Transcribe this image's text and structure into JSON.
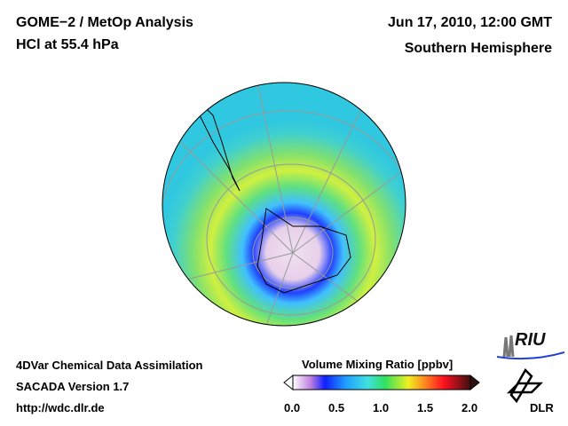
{
  "header": {
    "title": "GOME−2 / MetOp Analysis",
    "subtitle": "HCl at 55.4 hPa",
    "date": "Jun 17, 2010, 12:00 GMT",
    "region": "Southern Hemisphere"
  },
  "footer": {
    "line1": "4DVar Chemical Data Assimilation",
    "line2": "SACADA Version 1.7",
    "line3": "http://wdc.dlr.de"
  },
  "colorbar": {
    "title": "Volume Mixing Ratio [ppbv]",
    "ticks": [
      "0.0",
      "0.5",
      "1.0",
      "1.5",
      "2.0"
    ],
    "range": [
      0,
      2
    ]
  },
  "logos": {
    "riu": "RIU",
    "dlr": "DLR"
  }
}
